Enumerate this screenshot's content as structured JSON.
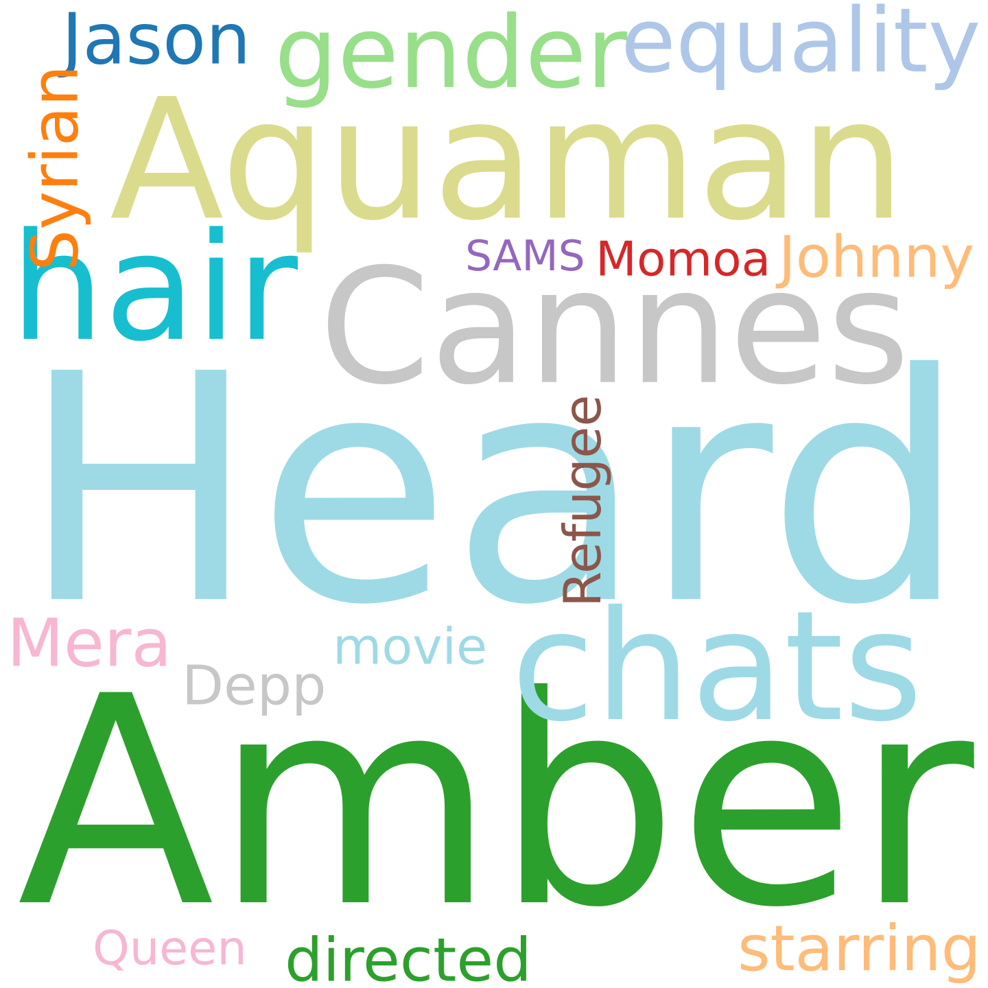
{
  "words": [
    {
      "id": "heard",
      "text": "Heard",
      "color": "#9edae5",
      "rotated": false
    },
    {
      "id": "amber",
      "text": "Amber",
      "color": "#2ca02c",
      "rotated": false
    },
    {
      "id": "aquaman",
      "text": "Aquaman",
      "color": "#dbdb8d",
      "rotated": false
    },
    {
      "id": "cannes",
      "text": "Cannes",
      "color": "#c7c7c7",
      "rotated": false
    },
    {
      "id": "hair",
      "text": "hair",
      "color": "#17becf",
      "rotated": false
    },
    {
      "id": "chats",
      "text": "chats",
      "color": "#9edae5",
      "rotated": false
    },
    {
      "id": "gender",
      "text": "gender",
      "color": "#98df8a",
      "rotated": false
    },
    {
      "id": "equality",
      "text": "equality",
      "color": "#aec7e8",
      "rotated": false
    },
    {
      "id": "jason",
      "text": "Jason",
      "color": "#1f77b4",
      "rotated": false
    },
    {
      "id": "syrian",
      "text": "Syrian",
      "color": "#ff7f0e",
      "rotated": true
    },
    {
      "id": "sams",
      "text": "SAMS",
      "color": "#9467bd",
      "rotated": false
    },
    {
      "id": "momoa",
      "text": "Momoa",
      "color": "#d62728",
      "rotated": false
    },
    {
      "id": "johnny",
      "text": "Johnny",
      "color": "#ffbb78",
      "rotated": false
    },
    {
      "id": "refugee",
      "text": "Refugee",
      "color": "#8c564b",
      "rotated": true
    },
    {
      "id": "mera",
      "text": "Mera",
      "color": "#f7b6d2",
      "rotated": false
    },
    {
      "id": "movie",
      "text": "movie",
      "color": "#9edae5",
      "rotated": false
    },
    {
      "id": "depp",
      "text": "Depp",
      "color": "#c7c7c7",
      "rotated": false
    },
    {
      "id": "queen",
      "text": "Queen",
      "color": "#f7b6d2",
      "rotated": false
    },
    {
      "id": "directed",
      "text": "directed",
      "color": "#2ca02c",
      "rotated": false
    },
    {
      "id": "starring",
      "text": "starring",
      "color": "#ffbb78",
      "rotated": false
    }
  ]
}
